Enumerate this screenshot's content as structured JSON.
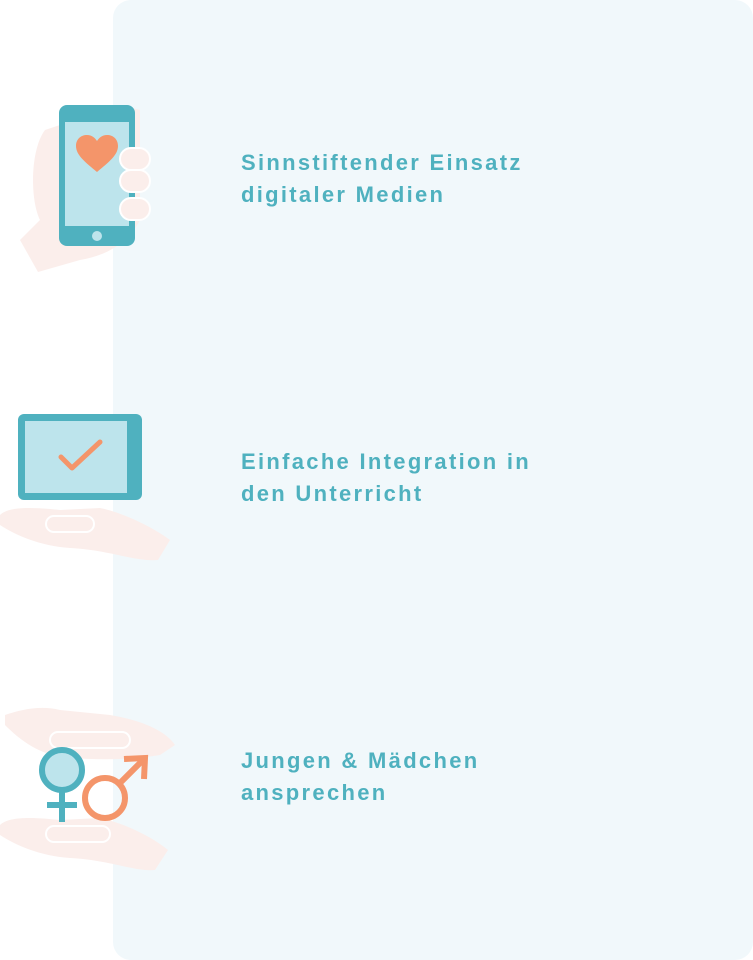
{
  "colors": {
    "panel_background": "#f1f8fb",
    "accent_teal": "#4fb1bf",
    "accent_orange": "#f4956a",
    "screen_light_blue": "#bde4ec",
    "hand_pink": "#fbeeeb"
  },
  "features": [
    {
      "icon": "smartphone-heart-icon",
      "text_lines": [
        "Sinnstiftender Einsatz",
        "digitaler Medien"
      ]
    },
    {
      "icon": "tablet-checkmark-icon",
      "text_lines": [
        "Einfache Integration in",
        "den Unterricht"
      ]
    },
    {
      "icon": "gender-symbols-icon",
      "text_lines": [
        "Jungen & Mädchen",
        "ansprechen"
      ]
    }
  ]
}
